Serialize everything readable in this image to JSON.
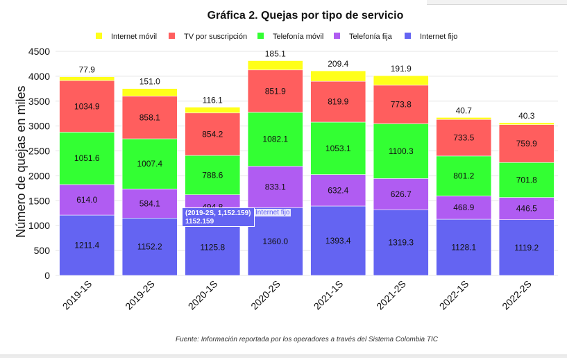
{
  "chart_data": {
    "type": "bar",
    "stacked": true,
    "title": "Gráfica 2. Quejas por tipo de servicio",
    "ylabel": "Número de quejas en miles",
    "xlabel": "",
    "ylim": [
      0,
      4500
    ],
    "yticks": [
      "0",
      "500",
      "1000",
      "1500",
      "2000",
      "2500",
      "3000",
      "3500",
      "4000",
      "4500"
    ],
    "categories": [
      "2019-1S",
      "2019-2S",
      "2020-1S",
      "2020-2S",
      "2021-1S",
      "2021-2S",
      "2022-1S",
      "2022-2S"
    ],
    "legend_position": "top",
    "series": [
      {
        "name": "Internet fijo",
        "color": "#6464f2",
        "values": [
          1211.4,
          1152.2,
          1125.8,
          1360.0,
          1393.4,
          1319.3,
          1128.1,
          1119.2
        ],
        "labels": [
          "1211.4",
          "1152.2",
          "1125.8",
          "1360.0",
          "1393.4",
          "1319.3",
          "1128.1",
          "1119.2"
        ]
      },
      {
        "name": "Telefonía fija",
        "color": "#b05cf2",
        "values": [
          614.0,
          584.1,
          494.8,
          833.1,
          632.4,
          626.7,
          468.9,
          446.5
        ],
        "labels": [
          "614.0",
          "584.1",
          "494.8",
          "833.1",
          "632.4",
          "626.7",
          "468.9",
          "446.5"
        ]
      },
      {
        "name": "Telefonía móvil",
        "color": "#33ff33",
        "values": [
          1051.6,
          1007.4,
          788.6,
          1082.1,
          1053.1,
          1100.3,
          801.2,
          701.8
        ],
        "labels": [
          "1051.6",
          "1007.4",
          "788.6",
          "1082.1",
          "1053.1",
          "1100.3",
          "801.2",
          "701.8"
        ]
      },
      {
        "name": "TV por suscripción",
        "color": "#ff5e5e",
        "values": [
          1034.9,
          858.1,
          854.2,
          851.9,
          819.9,
          773.8,
          733.5,
          759.9
        ],
        "labels": [
          "1034.9",
          "858.1",
          "854.2",
          "851.9",
          "819.9",
          "773.8",
          "733.5",
          "759.9"
        ]
      },
      {
        "name": "Internet móvil",
        "color": "#ffff1a",
        "values": [
          77.9,
          151.0,
          116.1,
          185.1,
          209.4,
          191.9,
          40.7,
          40.3
        ],
        "labels": [
          "77.9",
          "151.0",
          "116.1",
          "185.1",
          "209.4",
          "191.9",
          "40.7",
          "40.3"
        ]
      }
    ],
    "legend_order": [
      "Internet móvil",
      "TV por suscripción",
      "Telefonía móvil",
      "Telefonía fija",
      "Internet fijo"
    ],
    "source": "Fuente: Información reportada por los operadores a través del Sistema Colombia TIC"
  },
  "tooltip": {
    "point": "(2019-2S, 1,152.159)",
    "value": "1152.159",
    "series": "Internet fijo"
  }
}
